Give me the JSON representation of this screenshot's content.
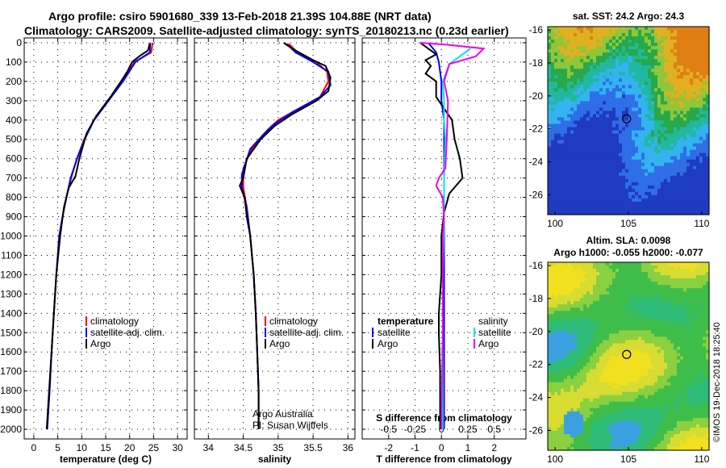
{
  "header": {
    "line1": "Argo profile: csiro 5901680_339 13-Feb-2018 21.39S 104.88E (NRT data)",
    "line2": "Climatology: CARS2009. Satellite-adjusted climatology: synTS_20180213.nc (0.23d earlier)"
  },
  "depth_ticks": [
    "0",
    "100",
    "200",
    "300",
    "400",
    "500",
    "600",
    "700",
    "800",
    "900",
    "1000",
    "1100",
    "1200",
    "1300",
    "1400",
    "1500",
    "1600",
    "1700",
    "1800",
    "1900",
    "2000"
  ],
  "colors": {
    "climatology": "#ff0000",
    "satellite": "#0000ff",
    "argo": "#000000",
    "salinity_sat": "#00e5ee",
    "salinity_argo": "#ee00ee"
  },
  "legend_profiles": [
    "climatology",
    "satellite-adj. clim.",
    "Argo"
  ],
  "legend_diff": {
    "temp_head": "temperature",
    "sal_head": "salinity",
    "sat": "satellite",
    "argo": "Argo"
  },
  "credits": {
    "line1": "Argo Australia",
    "line2": "PI: Susan Wijffels"
  },
  "watermark": "©IMOS 19-Dec-2018 18:25:40",
  "chart_data": [
    {
      "type": "line",
      "name": "temperature-profile",
      "xlabel": "temperature (deg C)",
      "ylabel": "depth",
      "xlim": [
        -2,
        32
      ],
      "ylim": [
        2050,
        -25
      ],
      "xticks": [
        0,
        5,
        10,
        15,
        20,
        25,
        30
      ],
      "xtick_labels": [
        "0",
        "5",
        "10",
        "15",
        "20",
        "25",
        "30"
      ],
      "series": [
        {
          "name": "climatology",
          "points": [
            [
              24.8,
              0
            ],
            [
              24.5,
              50
            ],
            [
              21,
              100
            ],
            [
              18.5,
              200
            ],
            [
              15.5,
              300
            ],
            [
              12.5,
              400
            ],
            [
              10.5,
              500
            ],
            [
              9,
              600
            ],
            [
              7.8,
              700
            ],
            [
              6.8,
              800
            ],
            [
              6,
              900
            ],
            [
              5.3,
              1000
            ],
            [
              4.7,
              1200
            ],
            [
              4.2,
              1400
            ],
            [
              3.7,
              1600
            ],
            [
              3.3,
              1800
            ],
            [
              2.8,
              2000
            ]
          ]
        },
        {
          "name": "satellite",
          "points": [
            [
              24.3,
              0
            ],
            [
              24.2,
              50
            ],
            [
              21.2,
              100
            ],
            [
              18.6,
              200
            ],
            [
              15.6,
              300
            ],
            [
              12.6,
              400
            ],
            [
              10.6,
              500
            ],
            [
              9,
              600
            ],
            [
              7.7,
              700
            ],
            [
              6.8,
              800
            ],
            [
              6,
              900
            ],
            [
              5.3,
              1000
            ],
            [
              4.7,
              1200
            ],
            [
              4.2,
              1400
            ],
            [
              3.7,
              1600
            ],
            [
              3.3,
              1800
            ],
            [
              2.8,
              2000
            ]
          ]
        },
        {
          "name": "Argo",
          "points": [
            [
              24.2,
              5
            ],
            [
              23.8,
              40
            ],
            [
              22,
              70
            ],
            [
              20.5,
              100
            ],
            [
              19.5,
              150
            ],
            [
              18.2,
              200
            ],
            [
              16,
              280
            ],
            [
              13,
              380
            ],
            [
              11,
              470
            ],
            [
              9.5,
              600
            ],
            [
              8.7,
              690
            ],
            [
              7.3,
              750
            ],
            [
              6.3,
              850
            ],
            [
              5.5,
              1000
            ],
            [
              4.7,
              1200
            ],
            [
              4.2,
              1400
            ],
            [
              3.7,
              1600
            ],
            [
              3.2,
              1800
            ],
            [
              2.7,
              2000
            ]
          ]
        }
      ]
    },
    {
      "type": "line",
      "name": "salinity-profile",
      "xlabel": "salinity",
      "ylabel": "depth",
      "xlim": [
        33.8,
        36.1
      ],
      "ylim": [
        2050,
        -25
      ],
      "xticks": [
        34,
        34.5,
        35,
        35.5,
        36
      ],
      "xtick_labels": [
        "34",
        "34.5",
        "35",
        "35.5",
        "36"
      ],
      "series": [
        {
          "name": "climatology",
          "points": [
            [
              35.15,
              5
            ],
            [
              35.28,
              50
            ],
            [
              35.55,
              100
            ],
            [
              35.7,
              150
            ],
            [
              35.72,
              200
            ],
            [
              35.6,
              280
            ],
            [
              35.25,
              350
            ],
            [
              35,
              400
            ],
            [
              34.85,
              450
            ],
            [
              34.62,
              550
            ],
            [
              34.5,
              650
            ],
            [
              34.5,
              750
            ],
            [
              34.55,
              850
            ],
            [
              34.6,
              1000
            ],
            [
              34.65,
              1200
            ],
            [
              34.68,
              1400
            ],
            [
              34.7,
              1600
            ],
            [
              34.72,
              1800
            ],
            [
              34.72,
              2000
            ]
          ]
        },
        {
          "name": "satellite",
          "points": [
            [
              35.12,
              5
            ],
            [
              35.25,
              50
            ],
            [
              35.5,
              100
            ],
            [
              35.72,
              150
            ],
            [
              35.75,
              220
            ],
            [
              35.6,
              280
            ],
            [
              35.2,
              360
            ],
            [
              34.95,
              420
            ],
            [
              34.8,
              470
            ],
            [
              34.6,
              550
            ],
            [
              34.48,
              680
            ],
            [
              34.48,
              750
            ],
            [
              34.55,
              850
            ],
            [
              34.6,
              1000
            ],
            [
              34.65,
              1200
            ],
            [
              34.68,
              1400
            ],
            [
              34.7,
              1600
            ],
            [
              34.72,
              1800
            ],
            [
              34.72,
              2000
            ]
          ]
        },
        {
          "name": "Argo",
          "points": [
            [
              35.08,
              0
            ],
            [
              35.2,
              30
            ],
            [
              35.35,
              60
            ],
            [
              35.5,
              90
            ],
            [
              35.68,
              120
            ],
            [
              35.75,
              180
            ],
            [
              35.72,
              250
            ],
            [
              35.55,
              300
            ],
            [
              35.2,
              370
            ],
            [
              34.95,
              430
            ],
            [
              34.75,
              500
            ],
            [
              34.55,
              600
            ],
            [
              34.5,
              700
            ],
            [
              34.45,
              740
            ],
            [
              34.52,
              800
            ],
            [
              34.55,
              900
            ],
            [
              34.6,
              1000
            ],
            [
              34.65,
              1200
            ],
            [
              34.68,
              1400
            ],
            [
              34.7,
              1600
            ],
            [
              34.72,
              1800
            ],
            [
              34.72,
              2000
            ]
          ]
        }
      ]
    },
    {
      "type": "line",
      "name": "difference-profile",
      "xlabel": "T difference from climatology",
      "xlabel2": "S difference from climatology",
      "xlim": [
        -3,
        3.2
      ],
      "ylim": [
        2050,
        -25
      ],
      "xticks": [
        -2,
        -1,
        0,
        1,
        2
      ],
      "xtick_labels": [
        "-2",
        "-1",
        "0",
        "1",
        "2"
      ],
      "sticks": [
        -2,
        -1,
        0,
        1,
        2
      ],
      "stick_labels": [
        "-0.5",
        "-0.25",
        "0",
        "0.25",
        "0.5"
      ],
      "series": [
        {
          "name": "T satellite",
          "points": [
            [
              -0.5,
              0
            ],
            [
              -0.2,
              50
            ],
            [
              -0.1,
              100
            ],
            [
              0,
              200
            ],
            [
              0,
              300
            ],
            [
              0.1,
              400
            ],
            [
              0.1,
              500
            ],
            [
              0.1,
              700
            ],
            [
              0.1,
              800
            ],
            [
              0.1,
              1000
            ],
            [
              0.1,
              1500
            ],
            [
              0.1,
              2000
            ]
          ]
        },
        {
          "name": "T Argo",
          "points": [
            [
              -0.8,
              0
            ],
            [
              -0.2,
              60
            ],
            [
              -0.6,
              90
            ],
            [
              -0.4,
              120
            ],
            [
              -0.6,
              160
            ],
            [
              -0.2,
              200
            ],
            [
              -0.2,
              280
            ],
            [
              0.4,
              400
            ],
            [
              0.5,
              500
            ],
            [
              0.7,
              600
            ],
            [
              0.8,
              700
            ],
            [
              0.3,
              780
            ],
            [
              0.1,
              880
            ],
            [
              0,
              1000
            ],
            [
              0,
              1200
            ],
            [
              -0.1,
              1400
            ],
            [
              -0.1,
              1500
            ],
            [
              -0.05,
              1700
            ],
            [
              -0.05,
              2000
            ]
          ]
        },
        {
          "name": "S satellite",
          "points": [
            [
              1.1,
              30
            ],
            [
              0.7,
              70
            ],
            [
              0.3,
              110
            ],
            [
              0.05,
              200
            ],
            [
              0.1,
              300
            ],
            [
              0.1,
              400
            ],
            [
              0.15,
              500
            ],
            [
              0.1,
              700
            ],
            [
              0.1,
              900
            ],
            [
              0.05,
              1200
            ],
            [
              0.05,
              1500
            ],
            [
              0.05,
              2000
            ]
          ]
        },
        {
          "name": "S Argo",
          "points": [
            [
              -0.8,
              0
            ],
            [
              0.2,
              10
            ],
            [
              1.6,
              30
            ],
            [
              1.3,
              70
            ],
            [
              0.3,
              110
            ],
            [
              0.1,
              200
            ],
            [
              0.25,
              300
            ],
            [
              0.2,
              500
            ],
            [
              0.15,
              650
            ],
            [
              -0.1,
              700
            ],
            [
              -0.2,
              740
            ],
            [
              0.05,
              800
            ],
            [
              0.1,
              900
            ],
            [
              0.05,
              1000
            ],
            [
              0.05,
              1500
            ],
            [
              0,
              2000
            ]
          ]
        }
      ]
    },
    {
      "type": "heatmap",
      "name": "sat-sst-map",
      "title": "sat. SST: 24.2 Argo: 24.3",
      "xlim": [
        99.5,
        110.5
      ],
      "ylim": [
        -27.2,
        -15.8
      ],
      "xticks": [
        100,
        105,
        110
      ],
      "xtick_labels": [
        "100",
        "105",
        "110"
      ],
      "yticks": [
        -16,
        -18,
        -20,
        -22,
        -24,
        -26
      ],
      "ytick_labels": [
        "-16",
        "-18",
        "-20",
        "-22",
        "-24",
        "-26"
      ],
      "marker": {
        "lon": 104.88,
        "lat": -21.39
      }
    },
    {
      "type": "heatmap",
      "name": "altimetry-map",
      "title": "Altim. SLA: 0.0098",
      "subtitle": "Argo h1000: -0.055 h2000: -0.077",
      "xlim": [
        99.5,
        110.5
      ],
      "ylim": [
        -27.2,
        -15.8
      ],
      "xticks": [
        100,
        105,
        110
      ],
      "xtick_labels": [
        "100",
        "105",
        "110"
      ],
      "yticks": [
        -16,
        -18,
        -20,
        -22,
        -24,
        -26
      ],
      "ytick_labels": [
        "-16",
        "-18",
        "-20",
        "-22",
        "-24",
        "-26"
      ],
      "marker": {
        "lon": 104.88,
        "lat": -21.39
      }
    }
  ]
}
